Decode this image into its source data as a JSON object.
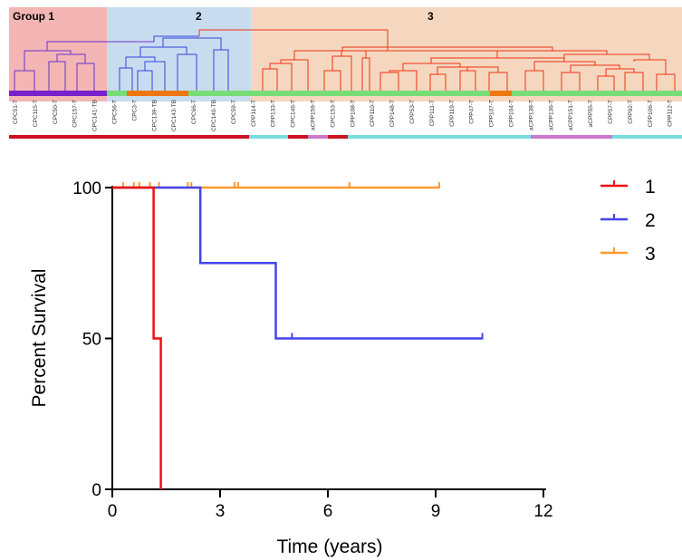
{
  "dendrogram": {
    "groups": [
      {
        "label": "Group 1",
        "color": "#f4b5b5"
      },
      {
        "label": "2",
        "color": "#c9dcef"
      },
      {
        "label": "3",
        "color": "#f5d7c0"
      }
    ],
    "samples": [
      "CPC51-T",
      "CPC115-T",
      "CPC50-T",
      "CPC157-T",
      "CPC141-TB",
      "CPC56-T",
      "CPC3-T",
      "CPC139-TB",
      "CPC143-TB",
      "CPC66-T",
      "CPC140-TB",
      "CPC59-T",
      "CPP114-T",
      "CPP133-T",
      "CPC146-T",
      "aCPP159-T",
      "CPC153-T",
      "CPP108-T",
      "CPP110-T",
      "CPP148-T",
      "CPP53-T",
      "CPP111-T",
      "CPP119-T",
      "CPP47-T",
      "CPP107-T",
      "CPP104-T",
      "aCPP138-T",
      "aCPP136-T",
      "aCPP151-T",
      "aCPP55-T",
      "CPP57-T",
      "CPP92-T",
      "CPP106-T",
      "CPP112-T"
    ],
    "colors": {
      "group1": "#6633cc",
      "group2": "#3344dd",
      "group3": "#ee3311",
      "top": "#ee3311"
    }
  },
  "chart_data": {
    "type": "line",
    "title": "",
    "xlabel": "Time (years)",
    "ylabel": "Percent Survival",
    "xlim": [
      0,
      12
    ],
    "ylim": [
      0,
      100
    ],
    "x_ticks": [
      0,
      3,
      6,
      9,
      12
    ],
    "y_ticks": [
      0,
      50,
      100
    ],
    "legend_position": "top-right",
    "series": [
      {
        "name": "1",
        "color": "#ee1111",
        "steps": [
          [
            0,
            100
          ],
          [
            1.15,
            100
          ],
          [
            1.15,
            50
          ],
          [
            1.35,
            50
          ],
          [
            1.35,
            0
          ]
        ],
        "censored": []
      },
      {
        "name": "2",
        "color": "#4444ee",
        "steps": [
          [
            0,
            100
          ],
          [
            2.45,
            100
          ],
          [
            2.45,
            75
          ],
          [
            4.55,
            75
          ],
          [
            4.55,
            50
          ],
          [
            10.3,
            50
          ]
        ],
        "censored": [
          [
            5.0,
            50
          ],
          [
            10.3,
            50
          ]
        ]
      },
      {
        "name": "3",
        "color": "#ff9933",
        "steps": [
          [
            0,
            100
          ],
          [
            9.1,
            100
          ]
        ],
        "censored": [
          [
            0.3,
            100
          ],
          [
            0.6,
            100
          ],
          [
            0.75,
            100
          ],
          [
            1.05,
            100
          ],
          [
            1.3,
            100
          ],
          [
            2.1,
            100
          ],
          [
            2.2,
            100
          ],
          [
            3.4,
            100
          ],
          [
            3.5,
            100
          ],
          [
            6.6,
            100
          ],
          [
            9.1,
            100
          ]
        ]
      }
    ]
  }
}
